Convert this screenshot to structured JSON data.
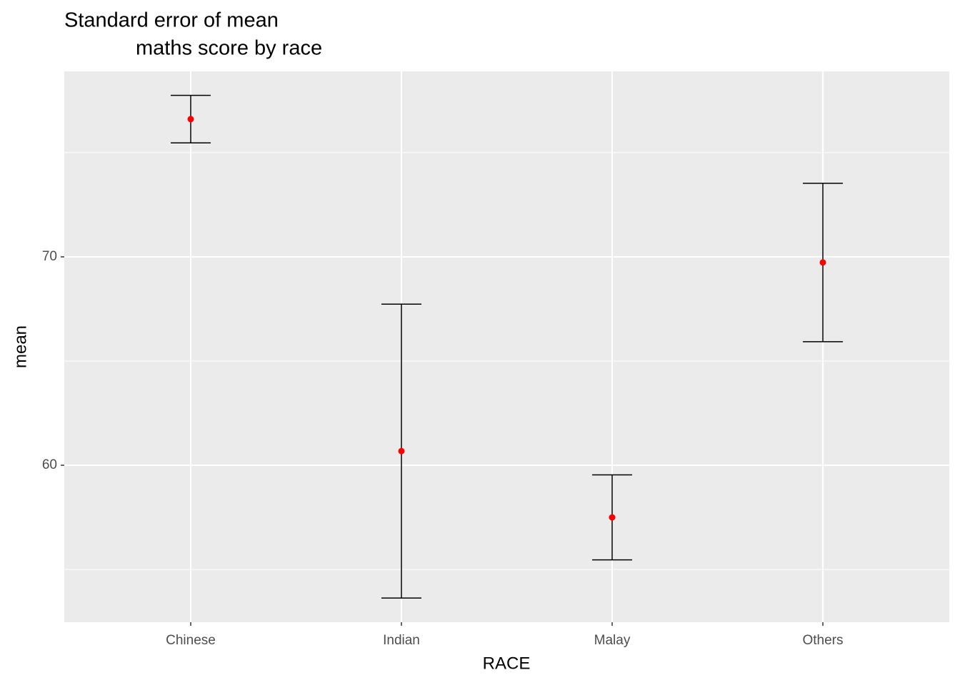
{
  "chart_data": {
    "type": "errorbar",
    "title": [
      "Standard error of mean",
      "maths score by race"
    ],
    "x_label": "RACE",
    "y_label": "mean",
    "categories": [
      "Chinese",
      "Indian",
      "Malay",
      "Others"
    ],
    "series": [
      {
        "color": "#ff0000",
        "values": [
          76.61,
          60.68,
          57.5,
          69.73
        ],
        "errors": [
          1.14,
          7.05,
          2.04,
          3.8
        ]
      }
    ],
    "ylim": [
      52.47,
      78.9
    ],
    "yticks": [
      60,
      70
    ],
    "y_minor_grid": [
      55,
      65,
      75
    ],
    "grid": true
  }
}
